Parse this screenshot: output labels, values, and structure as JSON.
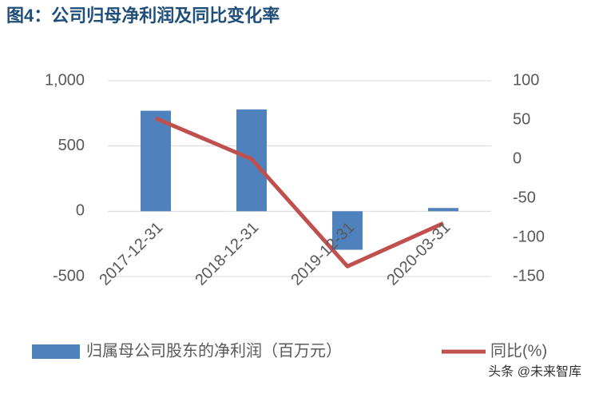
{
  "chart_data": {
    "type": "bar-line",
    "title": "图4：公司归母净利润及同比变化率",
    "categories": [
      "2017-12-31",
      "2018-12-31",
      "2019-12-31",
      "2020-03-31"
    ],
    "series": [
      {
        "name": "归属母公司股东的净利润（百万元）",
        "type": "bar",
        "color": "#4f81bd",
        "values": [
          770,
          780,
          -295,
          25
        ]
      },
      {
        "name": "同比(%)",
        "type": "line",
        "axis": "y2",
        "color": "#c0504d",
        "values": [
          52,
          0,
          -137,
          -82
        ]
      }
    ],
    "ylim": [
      -500,
      1000
    ],
    "yticks": [
      -500,
      0,
      500,
      {
        "value": 1000,
        "label": "1,000"
      }
    ],
    "y2lim": [
      -150,
      100
    ],
    "y2ticks": [
      -150,
      -100,
      -50,
      0,
      50,
      100
    ],
    "grid": true,
    "legend": "bottom",
    "watermark": "头条 @未来智库"
  }
}
